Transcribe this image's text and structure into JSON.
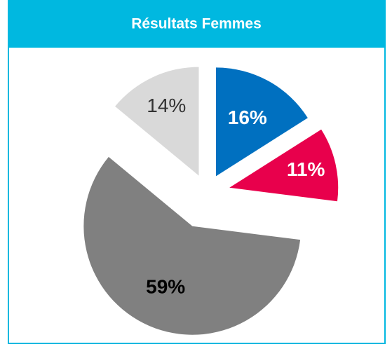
{
  "chart_data": {
    "type": "pie",
    "title": "Résultats Femmes",
    "values": [
      16,
      11,
      59,
      14
    ],
    "value_labels": [
      "16%",
      "11%",
      "59%",
      "14%"
    ],
    "colors": [
      "#0070c0",
      "#e8004c",
      "#808080",
      "#d9d9d9"
    ]
  }
}
